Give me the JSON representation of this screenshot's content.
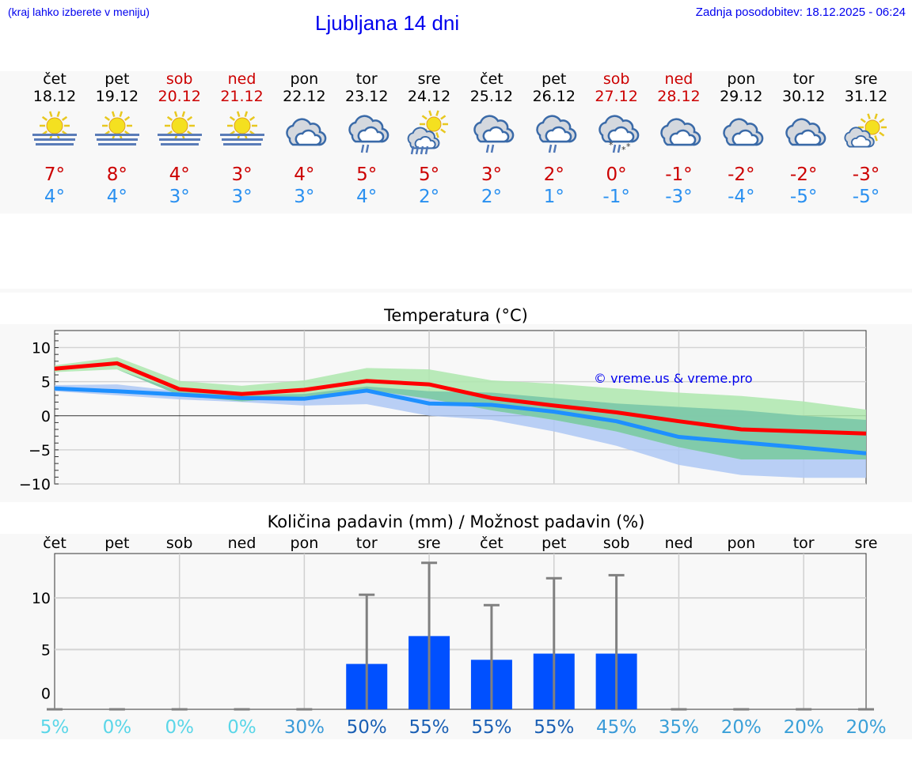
{
  "header": {
    "hint": "(kraj lahko izberete v meniju)",
    "title": "Ljubljana 14 dni",
    "updated": "Zadnja posodobitev: 18.12.2025 - 06:24"
  },
  "colors": {
    "max": "#ff0000",
    "min": "#1e90ff",
    "max_band": "#aee8ae",
    "min_band": "#aec8f4",
    "overlap": "#7cc8a8",
    "bar": "#0050ff",
    "whisker": "#808080",
    "weekend": "#cc0000"
  },
  "days": [
    {
      "name": "čet",
      "date": "18.12",
      "weekend": false,
      "icon": "fog-sun-icon",
      "max": "7°",
      "min": "4°"
    },
    {
      "name": "pet",
      "date": "19.12",
      "weekend": false,
      "icon": "fog-sun-icon",
      "max": "8°",
      "min": "4°"
    },
    {
      "name": "sob",
      "date": "20.12",
      "weekend": true,
      "icon": "fog-sun-icon",
      "max": "4°",
      "min": "3°"
    },
    {
      "name": "ned",
      "date": "21.12",
      "weekend": true,
      "icon": "fog-sun-icon",
      "max": "3°",
      "min": "3°"
    },
    {
      "name": "pon",
      "date": "22.12",
      "weekend": false,
      "icon": "cloudy-icon",
      "max": "4°",
      "min": "3°"
    },
    {
      "name": "tor",
      "date": "23.12",
      "weekend": false,
      "icon": "rain-icon",
      "max": "5°",
      "min": "4°"
    },
    {
      "name": "sre",
      "date": "24.12",
      "weekend": false,
      "icon": "sun-rain-icon",
      "max": "5°",
      "min": "2°"
    },
    {
      "name": "čet",
      "date": "25.12",
      "weekend": false,
      "icon": "rain-icon",
      "max": "3°",
      "min": "2°"
    },
    {
      "name": "pet",
      "date": "26.12",
      "weekend": false,
      "icon": "rain-icon",
      "max": "2°",
      "min": "1°"
    },
    {
      "name": "sob",
      "date": "27.12",
      "weekend": true,
      "icon": "snow-rain-icon",
      "max": "0°",
      "min": "-1°"
    },
    {
      "name": "ned",
      "date": "28.12",
      "weekend": true,
      "icon": "cloudy-icon",
      "max": "-1°",
      "min": "-3°"
    },
    {
      "name": "pon",
      "date": "29.12",
      "weekend": false,
      "icon": "cloudy-icon",
      "max": "-2°",
      "min": "-4°"
    },
    {
      "name": "tor",
      "date": "30.12",
      "weekend": false,
      "icon": "cloudy-icon",
      "max": "-2°",
      "min": "-5°"
    },
    {
      "name": "sre",
      "date": "31.12",
      "weekend": false,
      "icon": "sun-cloud-icon",
      "max": "-3°",
      "min": "-5°"
    }
  ],
  "chart_data": [
    {
      "type": "line",
      "title": "Temperatura (°C)",
      "ylim": [
        -10,
        12.5
      ],
      "yticks": [
        "10",
        "5",
        "0",
        "−5",
        "−10"
      ],
      "grid": true,
      "watermark": "© vreme.us & vreme.pro",
      "series": [
        {
          "key": "max",
          "values": [
            6.9,
            7.7,
            3.9,
            3.2,
            3.8,
            5.1,
            4.6,
            2.6,
            1.5,
            0.5,
            -0.8,
            -2.0,
            -2.3,
            -2.6
          ],
          "band_upper": [
            7.4,
            8.6,
            5.1,
            4.4,
            5.2,
            7.0,
            6.8,
            5.2,
            4.7,
            4.0,
            3.4,
            2.9,
            2.1,
            0.9
          ],
          "band_lower": [
            6.4,
            6.8,
            3.0,
            2.1,
            2.8,
            3.8,
            2.5,
            0.8,
            -0.6,
            -2.3,
            -4.6,
            -6.4,
            -6.4,
            -6.4
          ]
        },
        {
          "key": "min",
          "values": [
            4.0,
            3.6,
            3.1,
            2.6,
            2.5,
            3.7,
            1.8,
            1.6,
            0.6,
            -0.8,
            -3.1,
            -3.9,
            -4.7,
            -5.5
          ],
          "band_upper": [
            4.5,
            4.6,
            3.6,
            3.1,
            3.2,
            4.3,
            3.6,
            3.4,
            2.6,
            1.8,
            1.3,
            0.8,
            0.0,
            -0.6
          ],
          "band_lower": [
            3.6,
            3.0,
            2.4,
            2.0,
            1.5,
            1.7,
            0.0,
            -0.6,
            -2.3,
            -4.4,
            -7.2,
            -8.7,
            -9.1,
            -9.1
          ]
        }
      ]
    },
    {
      "type": "bar",
      "title": "Količina padavin (mm) / Možnost padavin (%)",
      "ylim": [
        -0.8,
        14.3
      ],
      "yticks": [
        "10",
        "5",
        "0"
      ],
      "grid": true,
      "categories": [
        "čet",
        "pet",
        "sob",
        "ned",
        "pon",
        "tor",
        "sre",
        "čet",
        "pet",
        "sob",
        "ned",
        "pon",
        "tor",
        "sre"
      ],
      "values": [
        0,
        0,
        0,
        0,
        0,
        3.6,
        6.3,
        4.0,
        4.6,
        4.6,
        0,
        0,
        0,
        0
      ],
      "upper": [
        0,
        0,
        0,
        0,
        0,
        10.3,
        13.4,
        9.3,
        11.9,
        12.2,
        0,
        0,
        0,
        0
      ],
      "probability": [
        "5%",
        "0%",
        "0%",
        "0%",
        "30%",
        "50%",
        "55%",
        "55%",
        "55%",
        "45%",
        "35%",
        "20%",
        "20%",
        "20%"
      ],
      "probability_colors": [
        "#5ad6e8",
        "#5ad6e8",
        "#5ad6e8",
        "#5ad6e8",
        "#3a9ad8",
        "#1a5fb4",
        "#1a5fb4",
        "#1a5fb4",
        "#1a5fb4",
        "#3a9ad8",
        "#3aa0d8",
        "#3aa0d8",
        "#3aa0d8",
        "#3aa0d8"
      ]
    }
  ]
}
